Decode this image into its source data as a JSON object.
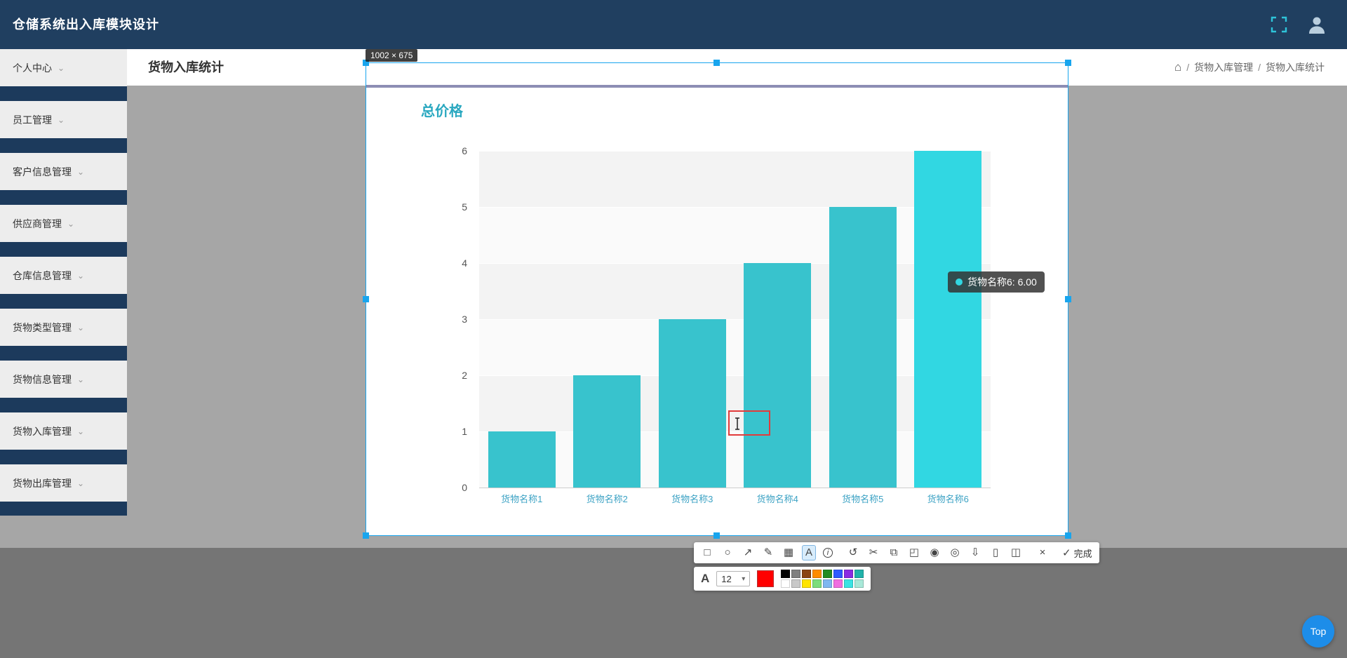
{
  "navbar": {
    "title": "仓储系统出入库模块设计",
    "accent_color": "#2ec4d9"
  },
  "sidebar": {
    "items": [
      {
        "label": "个人中心"
      },
      {
        "label": "员工管理"
      },
      {
        "label": "客户信息管理"
      },
      {
        "label": "供应商管理"
      },
      {
        "label": "仓库信息管理"
      },
      {
        "label": "货物类型管理"
      },
      {
        "label": "货物信息管理"
      },
      {
        "label": "货物入库管理"
      },
      {
        "label": "货物出库管理"
      }
    ]
  },
  "header": {
    "title": "货物入库统计",
    "breadcrumb": {
      "separator": "/",
      "items": [
        "货物入库管理",
        "货物入库统计"
      ]
    }
  },
  "capture": {
    "size_label": "1002 × 675",
    "border_color": "#18a5ee"
  },
  "chart_data": {
    "type": "bar",
    "title": "总价格",
    "categories": [
      "货物名称1",
      "货物名称2",
      "货物名称3",
      "货物名称4",
      "货物名称5",
      "货物名称6"
    ],
    "values": [
      1,
      2,
      3,
      4,
      5,
      6
    ],
    "ylim": [
      0,
      6
    ],
    "yticks": [
      0,
      1,
      2,
      3,
      4,
      5,
      6
    ],
    "xlabel": "",
    "ylabel": "",
    "grid": "on",
    "legend": "none",
    "bar_color": "#38c3cd",
    "highlight_index": 5,
    "highlight_color": "#31d7e2",
    "label_color": "#3ba2c4",
    "title_color": "#2aa8c0"
  },
  "tooltip": {
    "text": "货物名称6: 6.00",
    "marker_color": "#31d7e2"
  },
  "annotation_toolbar": {
    "tools": [
      {
        "name": "rectangle-tool-icon",
        "glyph": "□"
      },
      {
        "name": "ellipse-tool-icon",
        "glyph": "○"
      },
      {
        "name": "arrow-tool-icon",
        "glyph": "↗"
      },
      {
        "name": "pencil-tool-icon",
        "glyph": "✎"
      },
      {
        "name": "mosaic-tool-icon",
        "glyph": "▦"
      },
      {
        "name": "text-tool-icon",
        "glyph": "A",
        "selected": true
      },
      {
        "name": "step-number-tool-icon",
        "glyph": "i",
        "circled": true
      },
      {
        "name": "undo-tool-icon",
        "glyph": "↺",
        "group_gap": true
      },
      {
        "name": "crop-tool-icon",
        "glyph": "✂"
      },
      {
        "name": "copy-tool-icon",
        "glyph": "⧉"
      },
      {
        "name": "ocr-tool-icon",
        "glyph": "◰"
      },
      {
        "name": "pin-tool-icon",
        "glyph": "◉"
      },
      {
        "name": "locate-tool-icon",
        "glyph": "◎"
      },
      {
        "name": "download-tool-icon",
        "glyph": "⇩"
      },
      {
        "name": "mobile-tool-icon",
        "glyph": "▯"
      },
      {
        "name": "clipboard-tool-icon",
        "glyph": "◫"
      },
      {
        "name": "cancel-tool-icon",
        "glyph": "×",
        "group_gap": true
      }
    ],
    "done_glyph": "✓",
    "done_label": "完成",
    "font_label": "A",
    "font_size": "12",
    "palette": {
      "current": "#ff0000",
      "rows": [
        [
          "#000000",
          "#808080",
          "#8b4513",
          "#ff8c00",
          "#228b22",
          "#2d5bff",
          "#8a2be2",
          "#20b2aa"
        ],
        [
          "#ffffff",
          "#c8c8c8",
          "#ffe400",
          "#7cdd7c",
          "#7fb7f0",
          "#f06ee0",
          "#39e3e3",
          "#a8e8d8"
        ]
      ]
    }
  },
  "top_button": {
    "label": "Top"
  },
  "icons": {
    "caret": "⌄",
    "home": "⌂",
    "dropdown_caret": "▾"
  }
}
